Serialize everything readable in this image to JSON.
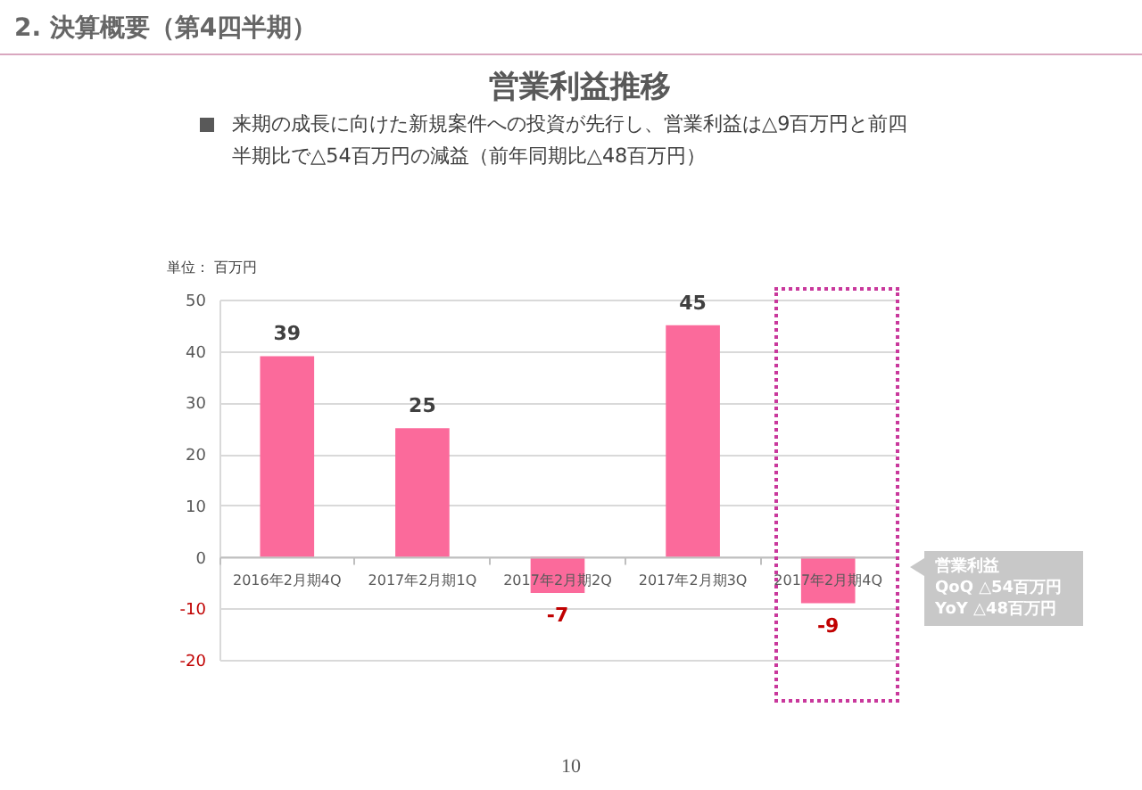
{
  "chart_data": {
    "type": "bar",
    "title": "営業利益推移",
    "subtitle": "来期の成長に向けた新規案件への投資が先行し、営業利益は△9百万円と前四半期比で△54百万円の減益（前年同期比△48百万円）",
    "ylabel": "単位： 百万円",
    "categories": [
      "2016年2月期4Q",
      "2017年2月期1Q",
      "2017年2月期2Q",
      "2017年2月期3Q",
      "2017年2月期4Q"
    ],
    "values": [
      39,
      25,
      -7,
      45,
      -9
    ],
    "color": "#fb6a9b",
    "ylim": [
      -20,
      50
    ],
    "yticks": [
      -20,
      -10,
      0,
      10,
      20,
      30,
      40,
      50
    ],
    "grid": "y",
    "data_labels": true,
    "annotations": [
      "2. 決算概要（第4四半期）",
      "営業利益\nQoQ △54百万円\nYoY △48百万円",
      "10"
    ]
  }
}
